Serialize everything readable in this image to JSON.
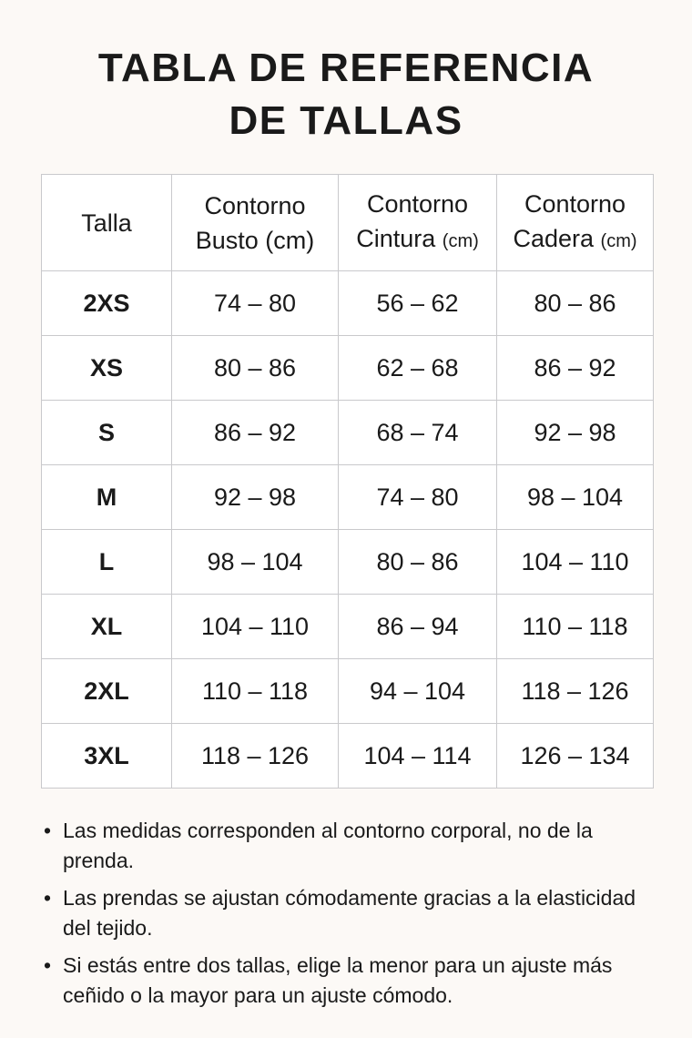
{
  "title": {
    "line1": "TABLA DE REFERENCIA",
    "line2": "DE TALLAS"
  },
  "table": {
    "headers": [
      {
        "main": "Talla",
        "unit": ""
      },
      {
        "main": "Contorno",
        "sub": "Busto (cm)",
        "unit": ""
      },
      {
        "main": "Contorno",
        "sub": "Cintura",
        "unit": "(cm)"
      },
      {
        "main": "Contorno",
        "sub": "Cadera",
        "unit": "(cm)"
      }
    ],
    "rows": [
      [
        "2XS",
        "74 – 80",
        "56 – 62",
        "80 – 86"
      ],
      [
        "XS",
        "80 – 86",
        "62 – 68",
        "86 – 92"
      ],
      [
        "S",
        "86 – 92",
        "68 – 74",
        "92 – 98"
      ],
      [
        "M",
        "92 – 98",
        "74 – 80",
        "98 – 104"
      ],
      [
        "L",
        "98 – 104",
        "80 – 86",
        "104 – 110"
      ],
      [
        "XL",
        "104 – 110",
        "86 – 94",
        "110 – 118"
      ],
      [
        "2XL",
        "110 – 118",
        "94 – 104",
        "118 – 126"
      ],
      [
        "3XL",
        "118 – 126",
        "104 – 114",
        "126 – 134"
      ]
    ]
  },
  "notes": {
    "bullet": "•",
    "items": [
      "Las medidas corresponden al contorno corporal, no de la prenda.",
      "Las prendas se ajustan cómodamente gracias a la elasticidad del tejido.",
      "Si estás entre dos tallas, elige la menor para un ajuste más ceñido o la mayor para un ajuste cómodo."
    ]
  }
}
